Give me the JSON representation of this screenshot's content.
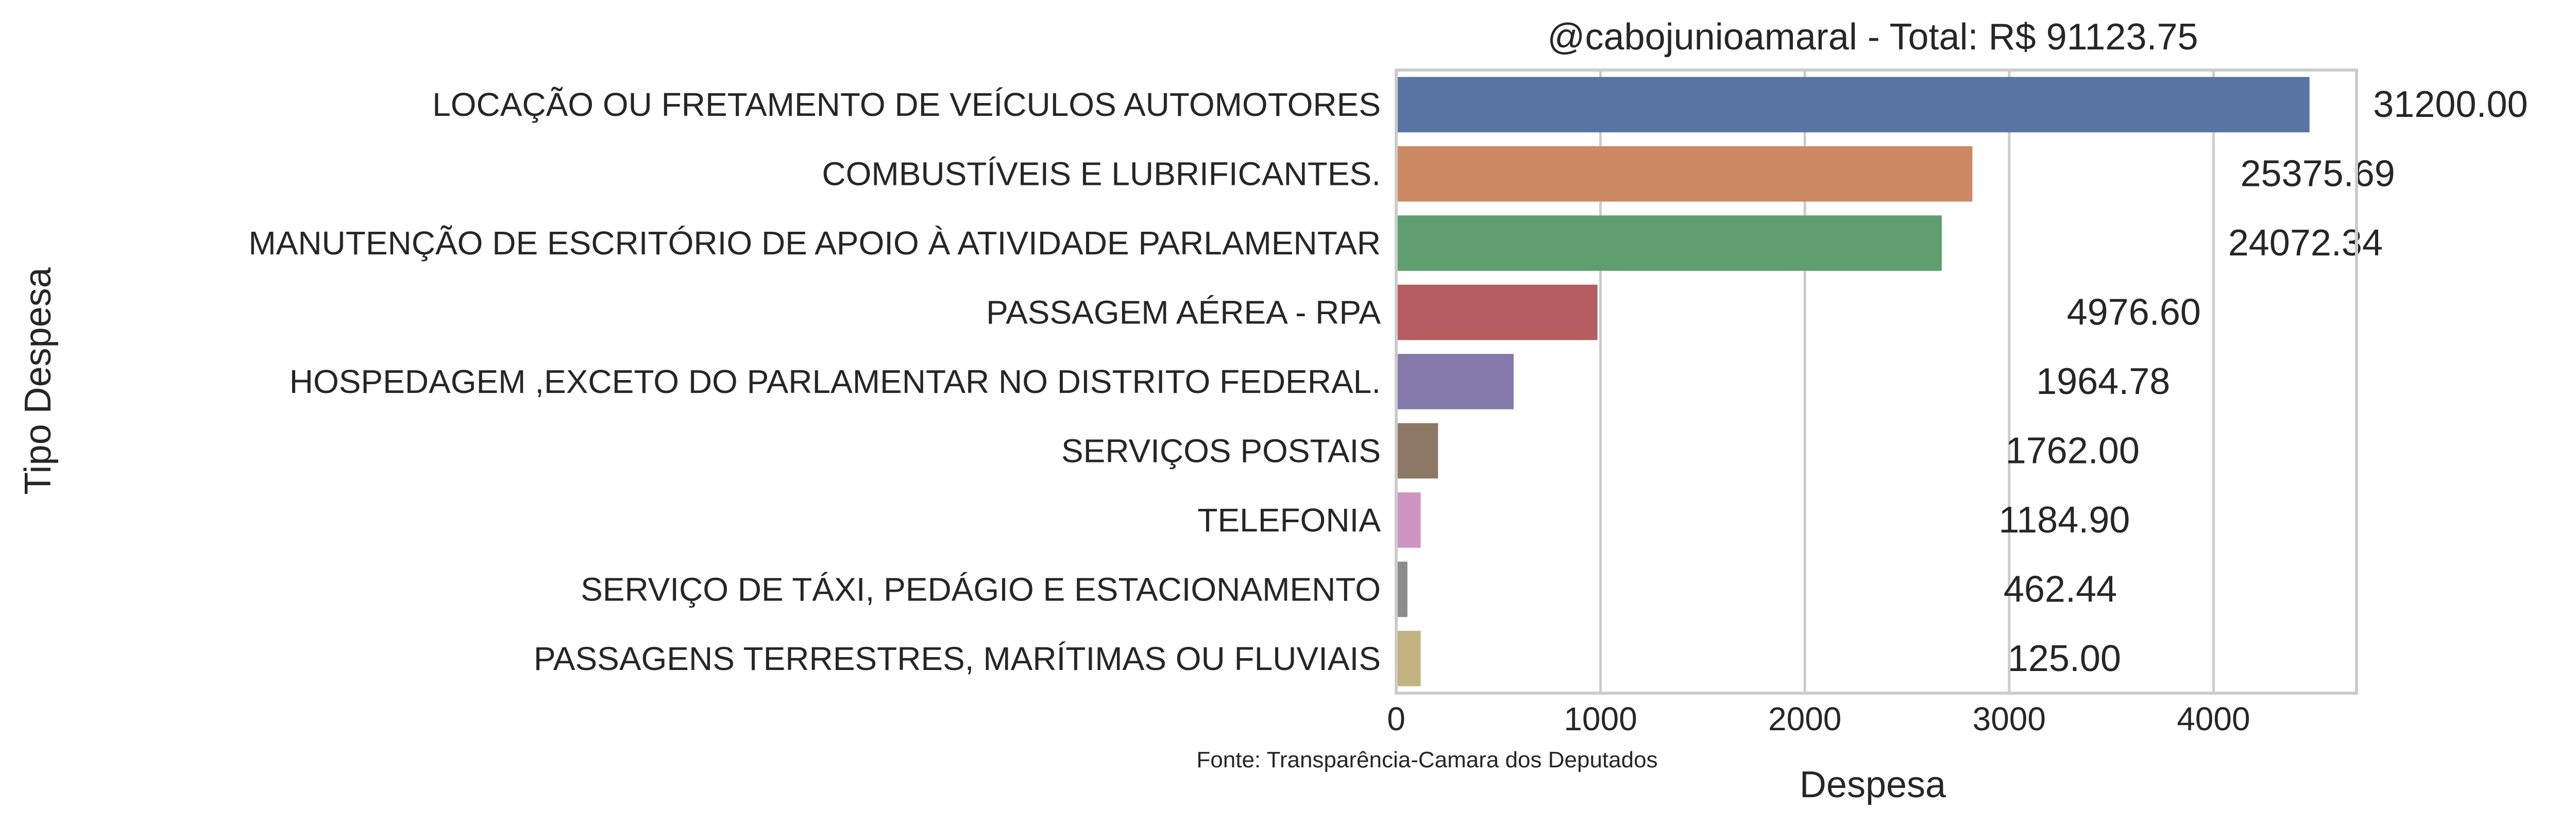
{
  "chart_data": {
    "type": "bar",
    "orientation": "horizontal",
    "title": "@cabojunioamaral - Total: R$ 91123.75",
    "xlabel": "Despesa",
    "ylabel": "Tipo Despesa",
    "source_note": "Fonte: Transparência-Camara dos Deputados",
    "xlim": [
      0,
      4700
    ],
    "xticks": [
      0,
      1000,
      2000,
      3000,
      4000
    ],
    "grid": "vertical",
    "categories": [
      "LOCAÇÃO OU FRETAMENTO DE VEÍCULOS AUTOMOTORES",
      "COMBUSTÍVEIS E LUBRIFICANTES.",
      "MANUTENÇÃO DE ESCRITÓRIO DE APOIO À ATIVIDADE PARLAMENTAR",
      "PASSAGEM AÉREA - RPA",
      "HOSPEDAGEM ,EXCETO DO PARLAMENTAR NO DISTRITO FEDERAL.",
      "SERVIÇOS POSTAIS",
      "TELEFONIA",
      "SERVIÇO DE TÁXI, PEDÁGIO E ESTACIONAMENTO",
      "PASSAGENS TERRESTRES, MARÍTIMAS OU FLUVIAIS"
    ],
    "values": [
      4470,
      2820,
      2670,
      985,
      575,
      205,
      120,
      55,
      120
    ],
    "value_labels": [
      "31200.00",
      "25375.69",
      "24072.34",
      "4976.60",
      "1964.78",
      "1762.00",
      "1184.90",
      "462.44",
      "125.00"
    ],
    "label_positions": [
      5160,
      4510,
      4450,
      3610,
      3460,
      3310,
      3270,
      3250,
      3270
    ],
    "colors": [
      "#5975a4",
      "#cc8963",
      "#5f9e6e",
      "#b55d60",
      "#857aab",
      "#8d7866",
      "#d095bf",
      "#8c8c8c",
      "#c1b37f"
    ]
  }
}
